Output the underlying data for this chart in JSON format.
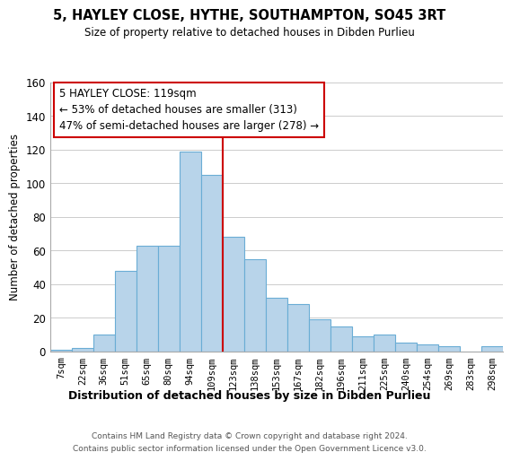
{
  "title": "5, HAYLEY CLOSE, HYTHE, SOUTHAMPTON, SO45 3RT",
  "subtitle": "Size of property relative to detached houses in Dibden Purlieu",
  "xlabel": "Distribution of detached houses by size in Dibden Purlieu",
  "ylabel": "Number of detached properties",
  "bar_labels": [
    "7sqm",
    "22sqm",
    "36sqm",
    "51sqm",
    "65sqm",
    "80sqm",
    "94sqm",
    "109sqm",
    "123sqm",
    "138sqm",
    "153sqm",
    "167sqm",
    "182sqm",
    "196sqm",
    "211sqm",
    "225sqm",
    "240sqm",
    "254sqm",
    "269sqm",
    "283sqm",
    "298sqm"
  ],
  "bar_values": [
    1,
    2,
    10,
    48,
    63,
    63,
    119,
    105,
    68,
    55,
    32,
    28,
    19,
    15,
    9,
    10,
    5,
    4,
    3,
    0,
    3
  ],
  "bar_color": "#b8d4ea",
  "bar_edge_color": "#6aadd5",
  "vline_color": "#cc0000",
  "vline_index": 7.5,
  "annotation_line1": "5 HAYLEY CLOSE: 119sqm",
  "annotation_line2": "← 53% of detached houses are smaller (313)",
  "annotation_line3": "47% of semi-detached houses are larger (278) →",
  "annotation_box_edge": "#cc0000",
  "footer_text": "Contains HM Land Registry data © Crown copyright and database right 2024.\nContains public sector information licensed under the Open Government Licence v3.0.",
  "ylim": [
    0,
    160
  ],
  "yticks": [
    0,
    20,
    40,
    60,
    80,
    100,
    120,
    140,
    160
  ]
}
